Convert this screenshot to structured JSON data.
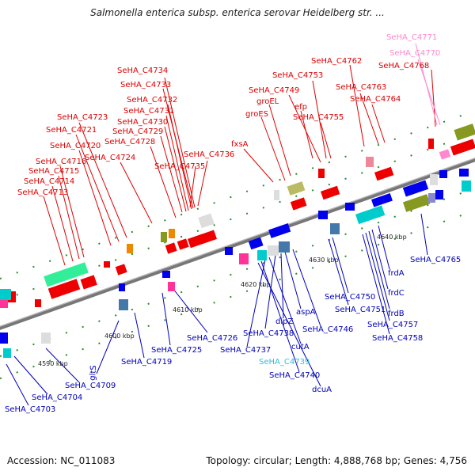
{
  "title": "Salmonella enterica subsp. enterica serovar Heidelberg str. ...",
  "accession": "Accession: NC_011083",
  "summary": "Topology: circular; Length: 4,888,768 bp; Genes: 4,756",
  "colors": {
    "forward_label": "#dd0000",
    "reverse_label": "#0000bb",
    "rna_label": "#ff88cc",
    "cyan_label": "#33bbdd",
    "backbone": "#888888"
  },
  "ticks": [
    "4590 kbp",
    "4600 kbp",
    "4610 kbp",
    "4620 kbp",
    "4630 kbp",
    "4640 kbp"
  ],
  "top_labels": [
    {
      "text": "SeHA_C4771",
      "color": "rna"
    },
    {
      "text": "SeHA_C4770",
      "color": "rna"
    },
    {
      "text": "SeHA_C4768",
      "color": "fwd"
    },
    {
      "text": "SeHA_C4762",
      "color": "fwd"
    },
    {
      "text": "SeHA_C4763",
      "color": "fwd"
    },
    {
      "text": "SeHA_C4764",
      "color": "fwd"
    },
    {
      "text": "SeHA_C4753",
      "color": "fwd"
    },
    {
      "text": "SeHA_C4749",
      "color": "fwd"
    },
    {
      "text": "groEL",
      "color": "fwd"
    },
    {
      "text": "efp",
      "color": "fwd"
    },
    {
      "text": "groES",
      "color": "fwd"
    },
    {
      "text": "SeHA_C4755",
      "color": "fwd"
    },
    {
      "text": "fxsA",
      "color": "fwd"
    },
    {
      "text": "SeHA_C4736",
      "color": "fwd"
    },
    {
      "text": "SeHA_C4735",
      "color": "fwd"
    },
    {
      "text": "SeHA_C4734",
      "color": "fwd"
    },
    {
      "text": "SeHA_C4733",
      "color": "fwd"
    },
    {
      "text": "SeHA_C4732",
      "color": "fwd"
    },
    {
      "text": "SeHA_C4731",
      "color": "fwd"
    },
    {
      "text": "SeHA_C4730",
      "color": "fwd"
    },
    {
      "text": "SeHA_C4729",
      "color": "fwd"
    },
    {
      "text": "SeHA_C4728",
      "color": "fwd"
    },
    {
      "text": "SeHA_C4724",
      "color": "fwd"
    },
    {
      "text": "SeHA_C4723",
      "color": "fwd"
    },
    {
      "text": "SeHA_C4721",
      "color": "fwd"
    },
    {
      "text": "SeHA_C4720",
      "color": "fwd"
    },
    {
      "text": "SeHA_C4716",
      "color": "fwd"
    },
    {
      "text": "SeHA_C4715",
      "color": "fwd"
    },
    {
      "text": "SeHA_C4714",
      "color": "fwd"
    },
    {
      "text": "SeHA_C4713",
      "color": "fwd"
    }
  ],
  "bottom_labels": [
    {
      "text": "SeHA_C4765",
      "color": "rev"
    },
    {
      "text": "frdA",
      "color": "rev"
    },
    {
      "text": "frdC",
      "color": "rev"
    },
    {
      "text": "frdB",
      "color": "rev"
    },
    {
      "text": "SeHA_C4757",
      "color": "rev"
    },
    {
      "text": "SeHA_C4758",
      "color": "rev"
    },
    {
      "text": "SeHA_C4750",
      "color": "rev"
    },
    {
      "text": "SeHA_C4751",
      "color": "rev"
    },
    {
      "text": "SeHA_C4746",
      "color": "rev"
    },
    {
      "text": "aspA",
      "color": "rev"
    },
    {
      "text": "dipZ",
      "color": "rev"
    },
    {
      "text": "SeHA_C4738",
      "color": "rev"
    },
    {
      "text": "cutA",
      "color": "rev"
    },
    {
      "text": "SeHA_C4737",
      "color": "rev"
    },
    {
      "text": "SeHA_C4739",
      "color": "cyan"
    },
    {
      "text": "SeHA_C4740",
      "color": "rev"
    },
    {
      "text": "dcuA",
      "color": "rev"
    },
    {
      "text": "SeHA_C4726",
      "color": "rev"
    },
    {
      "text": "SeHA_C4725",
      "color": "rev"
    },
    {
      "text": "SeHA_C4719",
      "color": "rev"
    },
    {
      "text": "gltS",
      "color": "rev"
    },
    {
      "text": "SeHA_C4709",
      "color": "rev"
    },
    {
      "text": "SeHA_C4704",
      "color": "rev"
    },
    {
      "text": "SeHA_C4703",
      "color": "rev"
    }
  ]
}
